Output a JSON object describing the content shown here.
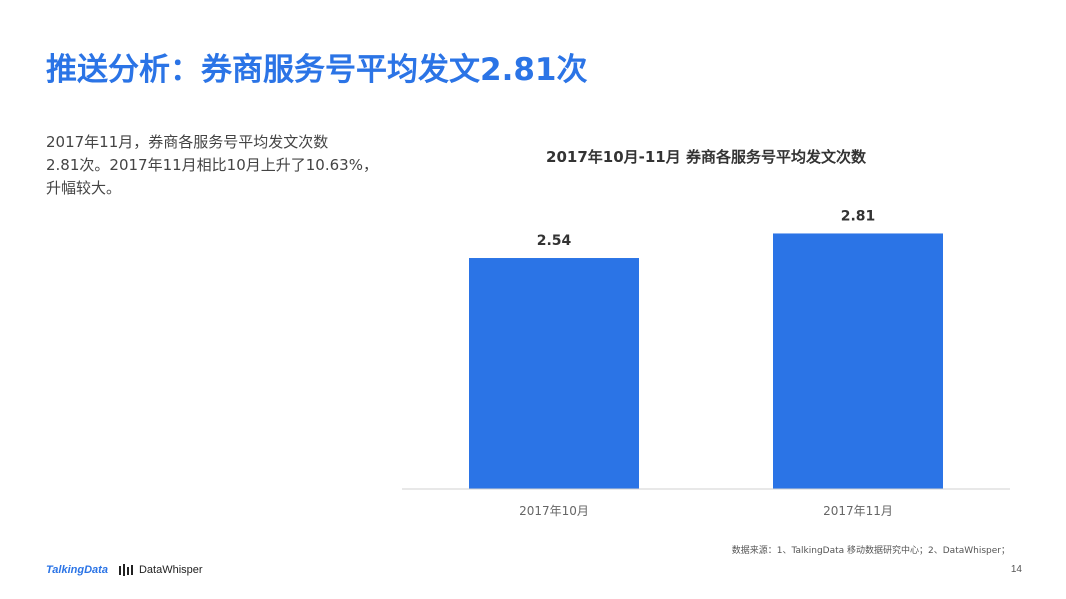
{
  "header": {
    "title": "推送分析：券商服务号平均发文2.81次"
  },
  "description": {
    "lines": [
      "2017年11月，券商各服务号平均发文次数",
      "2.81次。2017年11月相比10月上升了10.63%，",
      "升幅较大。"
    ]
  },
  "chart_data": {
    "type": "bar",
    "title": "2017年10月-11月 券商各服务号平均发文次数",
    "categories": [
      "2017年10月",
      "2017年11月"
    ],
    "values": [
      2.54,
      2.81
    ],
    "data_labels": [
      "2.54",
      "2.81"
    ],
    "ylim": [
      0,
      3.2
    ],
    "grid": false,
    "legend": "none",
    "bar_color": "#2b74e6",
    "axis_color": "#d0d0d0"
  },
  "footer": {
    "source": "数据来源：1、TalkingData 移动数据研究中心；2、DataWhisper；",
    "logo_talkingdata": "TalkingData",
    "logo_datawhisper": "DataWhisper",
    "page_number": "14"
  }
}
